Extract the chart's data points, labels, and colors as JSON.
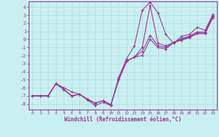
{
  "xlabel": "Windchill (Refroidissement éolien,°C)",
  "background_color": "#c8f0f0",
  "grid_color": "#b0d8d8",
  "line_color": "#993399",
  "x_ticks": [
    0,
    1,
    2,
    3,
    4,
    5,
    6,
    7,
    8,
    9,
    10,
    11,
    12,
    13,
    14,
    15,
    16,
    17,
    18,
    19,
    20,
    21,
    22,
    23
  ],
  "y_ticks": [
    -8,
    -7,
    -6,
    -5,
    -4,
    -3,
    -2,
    -1,
    0,
    1,
    2,
    3,
    4
  ],
  "xlim": [
    -0.5,
    23.5
  ],
  "ylim": [
    -8.7,
    4.7
  ],
  "series": [
    [
      -7.0,
      -7.0,
      -7.0,
      -5.5,
      -6.0,
      -6.5,
      -6.8,
      -7.5,
      -8.2,
      -7.8,
      -8.2,
      -4.7,
      -2.4,
      -0.8,
      3.6,
      4.6,
      3.3,
      0.6,
      -0.5,
      0.4,
      0.6,
      1.5,
      1.1,
      3.1
    ],
    [
      -7.0,
      -7.0,
      -7.0,
      -5.5,
      -6.2,
      -7.0,
      -6.8,
      -7.4,
      -7.9,
      -7.6,
      -8.1,
      -5.0,
      -2.7,
      -2.2,
      -1.0,
      4.2,
      -0.5,
      -0.8,
      -0.4,
      0.1,
      0.4,
      0.9,
      0.9,
      2.9
    ],
    [
      -7.0,
      -7.0,
      -7.0,
      -5.5,
      -6.2,
      -7.0,
      -6.8,
      -7.4,
      -7.9,
      -7.6,
      -8.1,
      -5.0,
      -2.7,
      -2.2,
      -1.5,
      0.5,
      -0.8,
      -1.0,
      -0.4,
      0.0,
      0.3,
      0.8,
      0.8,
      2.8
    ],
    [
      -7.0,
      -7.0,
      -7.0,
      -5.5,
      -6.2,
      -7.0,
      -6.8,
      -7.4,
      -7.9,
      -7.6,
      -8.1,
      -5.0,
      -2.7,
      -2.2,
      -2.0,
      0.0,
      -1.0,
      -1.2,
      -0.4,
      -0.1,
      0.2,
      0.7,
      0.7,
      2.7
    ]
  ]
}
